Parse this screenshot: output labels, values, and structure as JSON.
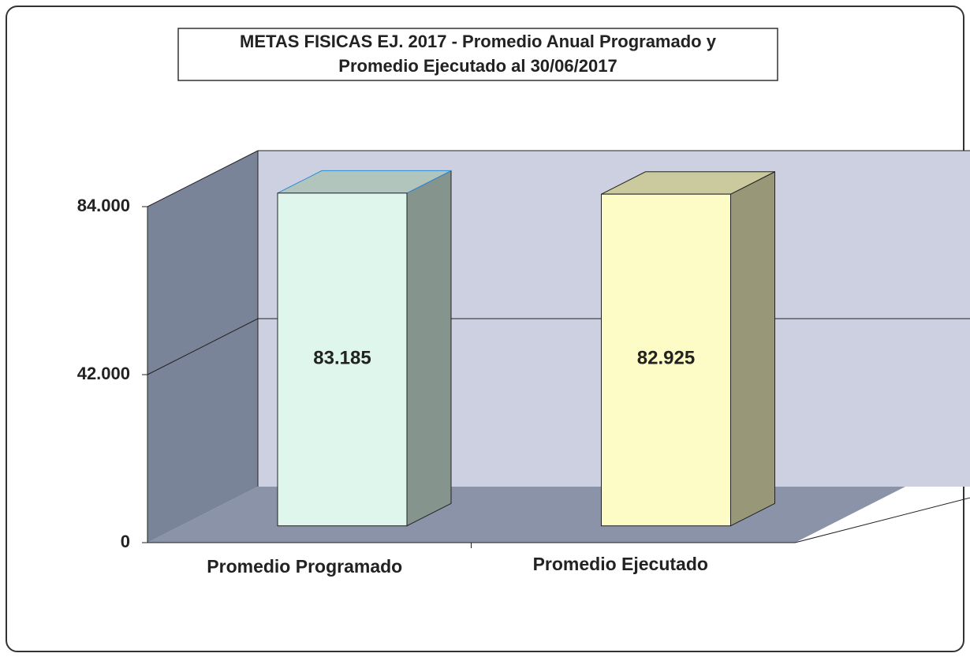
{
  "chart_data": {
    "type": "bar3d",
    "title": [
      "METAS FISICAS EJ. 2017 - Promedio Anual Programado y",
      "Promedio Ejecutado al 30/06/2017"
    ],
    "categories": [
      "Promedio Programado",
      "Promedio Ejecutado"
    ],
    "values": [
      83185,
      82925
    ],
    "value_labels": [
      "83.185",
      "82.925"
    ],
    "colors": [
      "#dff6ec",
      "#fdfcc6"
    ],
    "ylim": [
      0,
      84000
    ],
    "yticks": [
      0,
      {
        "value": 42000,
        "label": "42.000"
      },
      {
        "value": 84000,
        "label": "84.000"
      }
    ],
    "grid": true
  }
}
